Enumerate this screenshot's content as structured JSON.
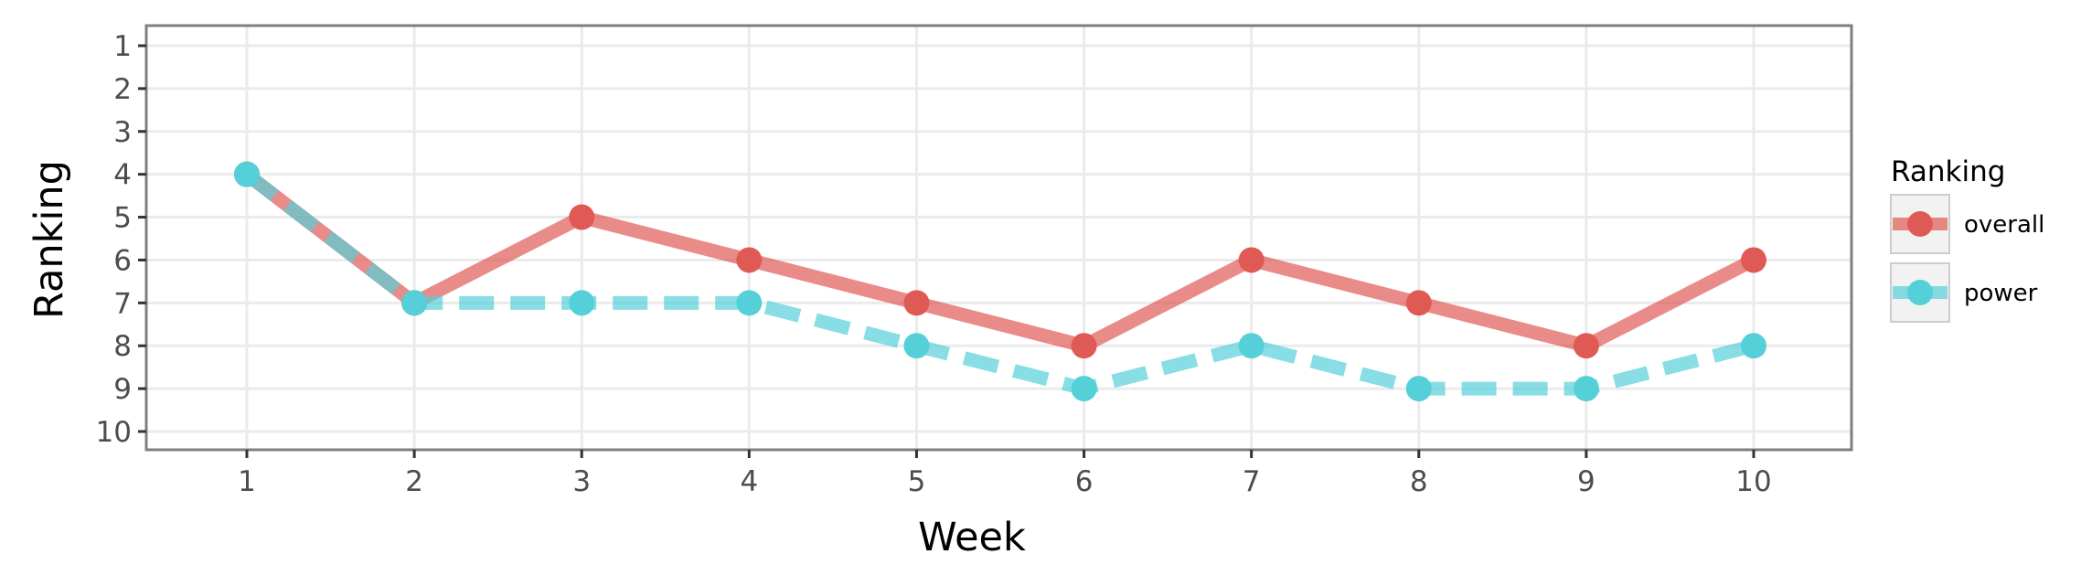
{
  "chart_data": {
    "type": "line",
    "title": "",
    "xlabel": "Week",
    "ylabel": "Ranking",
    "x": [
      1,
      2,
      3,
      4,
      5,
      6,
      7,
      8,
      9,
      10
    ],
    "xlim": [
      1,
      10
    ],
    "ylim": [
      1,
      10
    ],
    "y_reversed": true,
    "x_ticks": [
      "1",
      "2",
      "3",
      "4",
      "5",
      "6",
      "7",
      "8",
      "9",
      "10"
    ],
    "y_ticks": [
      "1",
      "2",
      "3",
      "4",
      "5",
      "6",
      "7",
      "8",
      "9",
      "10"
    ],
    "grid": true,
    "legend": {
      "title": "Ranking",
      "placement": "right"
    },
    "series": [
      {
        "name": "overall",
        "values": [
          4,
          7,
          5,
          6,
          7,
          8,
          6,
          7,
          8,
          6
        ],
        "color": "#e05a55",
        "line_style": "solid"
      },
      {
        "name": "power",
        "values": [
          4,
          7,
          7,
          7,
          8,
          9,
          8,
          9,
          9,
          8
        ],
        "color": "#55d0d8",
        "line_style": "dashed"
      }
    ]
  }
}
